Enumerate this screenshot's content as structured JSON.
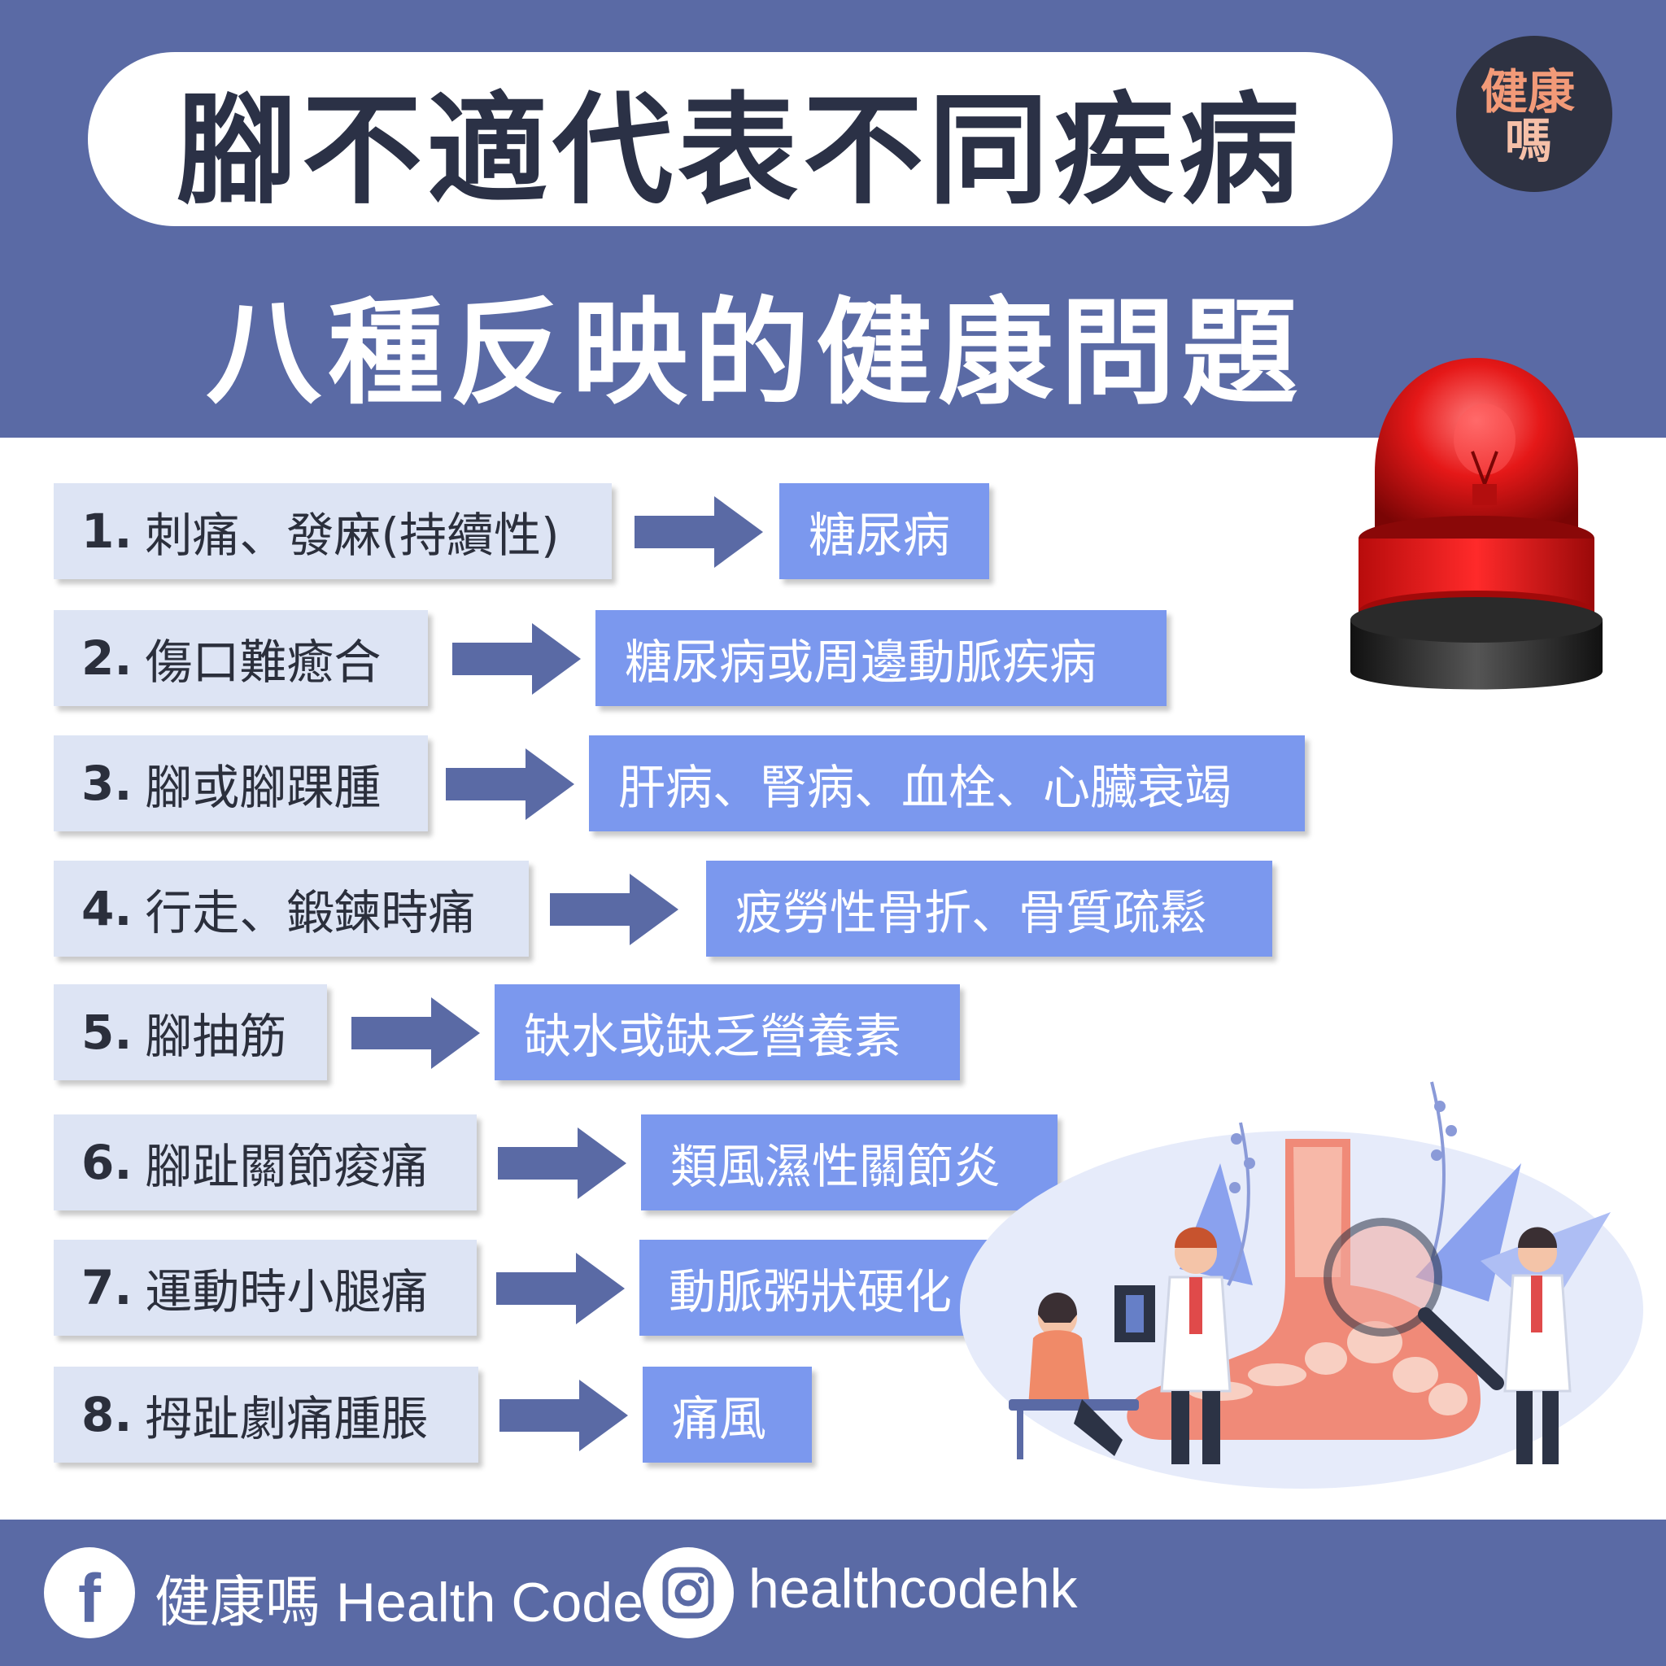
{
  "header": {
    "title": "腳不適代表不同疾病",
    "subtitle": "八種反映的健康問題",
    "logo_line1": "健康",
    "logo_line2": "嗎"
  },
  "items": [
    {
      "num": "1.",
      "symptom": "刺痛、發麻(持續性)",
      "cause": "糖尿病"
    },
    {
      "num": "2.",
      "symptom": "傷口難癒合",
      "cause": "糖尿病或周邊動脈疾病"
    },
    {
      "num": "3.",
      "symptom": "腳或腳踝腫",
      "cause": "肝病、腎病、血栓、心臟衰竭"
    },
    {
      "num": "4.",
      "symptom": "行走、鍛鍊時痛",
      "cause": "疲勞性骨折、骨質疏鬆"
    },
    {
      "num": "5.",
      "symptom": "腳抽筋",
      "cause": "缺水或缺乏營養素"
    },
    {
      "num": "6.",
      "symptom": "腳趾關節痠痛",
      "cause": "類風濕性關節炎"
    },
    {
      "num": "7.",
      "symptom": "運動時小腿痛",
      "cause": "動脈粥狀硬化"
    },
    {
      "num": "8.",
      "symptom": "拇趾劇痛腫脹",
      "cause": "痛風"
    }
  ],
  "footer": {
    "facebook_name": "健康嗎 Health Code",
    "instagram_handle": "healthcodehk"
  },
  "colors": {
    "band": "#5a6aa5",
    "title_text": "#2b3146",
    "symptom_box": "#dde4f4",
    "cause_box": "#7b98ee",
    "arrow": "#5a6aa5",
    "siren_red": "#e01515"
  }
}
